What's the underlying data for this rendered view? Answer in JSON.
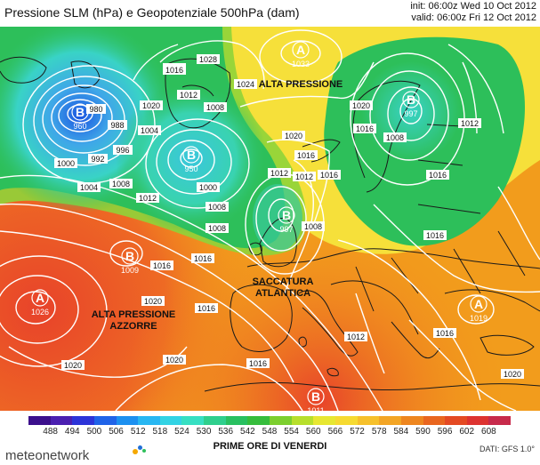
{
  "header": {
    "title": "Pressione SLM (hPa) e Geopotenziale 500hPa (dam)",
    "init": "init: 06:00z Wed 10 Oct 2012",
    "valid": "valid: 06:00z Fri 12 Oct 2012"
  },
  "map": {
    "regions": [
      {
        "label": "ALTA PRESSIONE"
      },
      {
        "label": "SACCATURA\nATLANTICA"
      },
      {
        "label": "ALTA PRESSIONE\nAZZORRE"
      }
    ],
    "centers": [
      {
        "type": "B",
        "value": "960"
      },
      {
        "type": "B",
        "value": "950"
      },
      {
        "type": "B",
        "value": "997"
      },
      {
        "type": "B",
        "value": "1009"
      },
      {
        "type": "A",
        "value": "1026"
      },
      {
        "type": "A",
        "value": "1033"
      },
      {
        "type": "B",
        "value": "997"
      },
      {
        "type": "A",
        "value": "1019"
      },
      {
        "type": "B",
        "value": "1011"
      }
    ],
    "isobar_labels": [
      "980",
      "988",
      "996",
      "992",
      "1000",
      "1004",
      "1008",
      "1012",
      "1016",
      "1020",
      "1024",
      "1028",
      "1004",
      "1008",
      "1012",
      "1016",
      "1020",
      "1012",
      "1016",
      "1020",
      "1016",
      "1008",
      "1012",
      "1016",
      "1008",
      "1000",
      "1008",
      "1016",
      "1020",
      "1020",
      "1016",
      "1020",
      "1012",
      "1016",
      "1016",
      "1020",
      "1016",
      "1008",
      "1012",
      "1016",
      "1016"
    ],
    "colors": {
      "deep_low": "#3fa7e8",
      "low": "#39d3c6",
      "green": "#2dbf5a",
      "yellow": "#f6e03a",
      "orange": "#f29c1c",
      "red": "#e8432a",
      "isobar": "#ffffff",
      "coast": "#1a1a1a"
    }
  },
  "legend": {
    "ticks": [
      "488",
      "494",
      "500",
      "506",
      "512",
      "518",
      "524",
      "530",
      "536",
      "542",
      "548",
      "554",
      "560",
      "566",
      "572",
      "578",
      "584",
      "590",
      "596",
      "602",
      "608"
    ],
    "colors": [
      "#3b0f8c",
      "#4a1fb0",
      "#2c34d8",
      "#1f63e8",
      "#1c90f0",
      "#28b7f2",
      "#32d3e4",
      "#37dfc2",
      "#2fcf8d",
      "#29c060",
      "#36bd3c",
      "#7ccf2e",
      "#b7df2c",
      "#e7e732",
      "#f6da31",
      "#f6c02b",
      "#f3a525",
      "#ee861f",
      "#e9661f",
      "#e44a23",
      "#dd3330",
      "#c72a4b"
    ]
  },
  "subtitle": "PRIME ORE DI VENERDI",
  "source": "DATI: GFS 1.0°",
  "brand": "meteonetwork"
}
